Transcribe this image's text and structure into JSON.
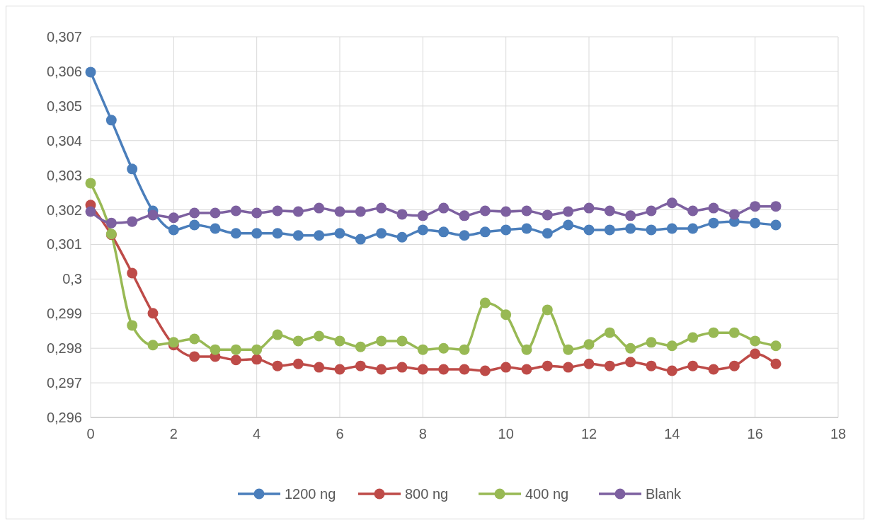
{
  "chart_data": {
    "type": "line",
    "x": [
      0,
      0.5,
      1,
      1.5,
      2,
      2.5,
      3,
      3.5,
      4,
      4.5,
      5,
      5.5,
      6,
      6.5,
      7,
      7.5,
      8,
      8.5,
      9,
      9.5,
      10,
      10.5,
      11,
      11.5,
      12,
      12.5,
      13,
      13.5,
      14,
      14.5,
      15,
      15.5,
      16,
      16.5
    ],
    "series": [
      {
        "name": "1200 ng",
        "color": "#4a7ebb",
        "values": [
          0.30598,
          0.30459,
          0.30318,
          0.30197,
          0.30142,
          0.30156,
          0.30146,
          0.30132,
          0.30132,
          0.30132,
          0.30126,
          0.30126,
          0.30132,
          0.30115,
          0.30132,
          0.30121,
          0.30142,
          0.30136,
          0.30126,
          0.30136,
          0.30142,
          0.30146,
          0.30132,
          0.30156,
          0.30142,
          0.30142,
          0.30146,
          0.30142,
          0.30146,
          0.30146,
          0.30162,
          0.30166,
          0.30162,
          0.30156
        ]
      },
      {
        "name": "800 ng",
        "color": "#be4b48",
        "values": [
          0.30214,
          0.30128,
          0.30017,
          0.29901,
          0.29809,
          0.29776,
          0.29776,
          0.29766,
          0.29768,
          0.29749,
          0.29755,
          0.29745,
          0.29739,
          0.29749,
          0.29739,
          0.29745,
          0.29739,
          0.29739,
          0.29739,
          0.29735,
          0.29745,
          0.29739,
          0.29749,
          0.29745,
          0.29755,
          0.29749,
          0.2976,
          0.29749,
          0.29735,
          0.29749,
          0.29739,
          0.29749,
          0.29784,
          0.29755
        ]
      },
      {
        "name": "400 ng",
        "color": "#98b954",
        "values": [
          0.30277,
          0.3013,
          0.29866,
          0.29809,
          0.29817,
          0.29827,
          0.29796,
          0.29796,
          0.29796,
          0.29839,
          0.29821,
          0.29835,
          0.29821,
          0.29804,
          0.29821,
          0.29821,
          0.29796,
          0.298,
          0.29796,
          0.29931,
          0.29897,
          0.29796,
          0.29911,
          0.29796,
          0.29811,
          0.29845,
          0.298,
          0.29817,
          0.29807,
          0.29831,
          0.29845,
          0.29845,
          0.29821,
          0.29807
        ]
      },
      {
        "name": "Blank",
        "color": "#7d60a0",
        "values": [
          0.30195,
          0.30162,
          0.30166,
          0.30185,
          0.30177,
          0.30191,
          0.30191,
          0.30197,
          0.30191,
          0.30197,
          0.30195,
          0.30205,
          0.30195,
          0.30195,
          0.30205,
          0.30187,
          0.30183,
          0.30205,
          0.30183,
          0.30197,
          0.30195,
          0.30197,
          0.30185,
          0.30195,
          0.30205,
          0.30197,
          0.30183,
          0.30197,
          0.3022,
          0.30197,
          0.30205,
          0.30187,
          0.3021,
          0.3021
        ]
      }
    ],
    "xlim": [
      0,
      18
    ],
    "xticks": [
      0,
      2,
      4,
      6,
      8,
      10,
      12,
      14,
      16,
      18
    ],
    "ylim": [
      0.296,
      0.307
    ],
    "yticks": [
      {
        "value": 0.296,
        "label": "0,296"
      },
      {
        "value": 0.297,
        "label": "0,297"
      },
      {
        "value": 0.298,
        "label": "0,298"
      },
      {
        "value": 0.299,
        "label": "0,299"
      },
      {
        "value": 0.3,
        "label": "0,3"
      },
      {
        "value": 0.301,
        "label": "0,301"
      },
      {
        "value": 0.302,
        "label": "0,302"
      },
      {
        "value": 0.303,
        "label": "0,303"
      },
      {
        "value": 0.304,
        "label": "0,304"
      },
      {
        "value": 0.305,
        "label": "0,305"
      },
      {
        "value": 0.306,
        "label": "0,306"
      },
      {
        "value": 0.307,
        "label": "0,307"
      }
    ],
    "grid": true,
    "legend": "bottom",
    "marker": "circle",
    "line_style": "solid"
  }
}
